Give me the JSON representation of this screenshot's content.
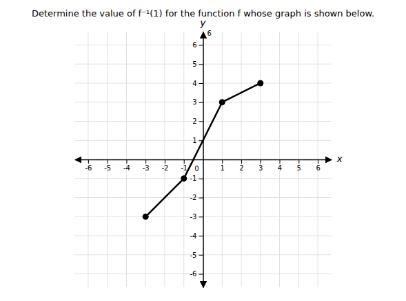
{
  "chart_data": {
    "type": "line",
    "title": "Determine the value of f⁻¹(1) for the function f whose graph is shown below.",
    "xlabel": "x",
    "ylabel": "y",
    "x": [
      -3,
      -1,
      1,
      3
    ],
    "values": [
      -3,
      -1,
      3,
      4
    ],
    "color": "#000000",
    "marker": "circle",
    "xlim": [
      -6.7,
      6.7
    ],
    "ylim": [
      -6.7,
      6.7
    ],
    "xticks": [
      -6,
      -5,
      -4,
      -3,
      -2,
      -1,
      1,
      2,
      3,
      4,
      5,
      6
    ],
    "yticks": [
      -6,
      -5,
      -4,
      -3,
      -2,
      -1,
      1,
      2,
      3,
      4,
      5,
      6
    ],
    "grid": true,
    "annotations": [
      {
        "text": "0",
        "x": 0,
        "y": 0
      },
      {
        "text": "6",
        "x": 0,
        "y": 6.6
      }
    ]
  }
}
